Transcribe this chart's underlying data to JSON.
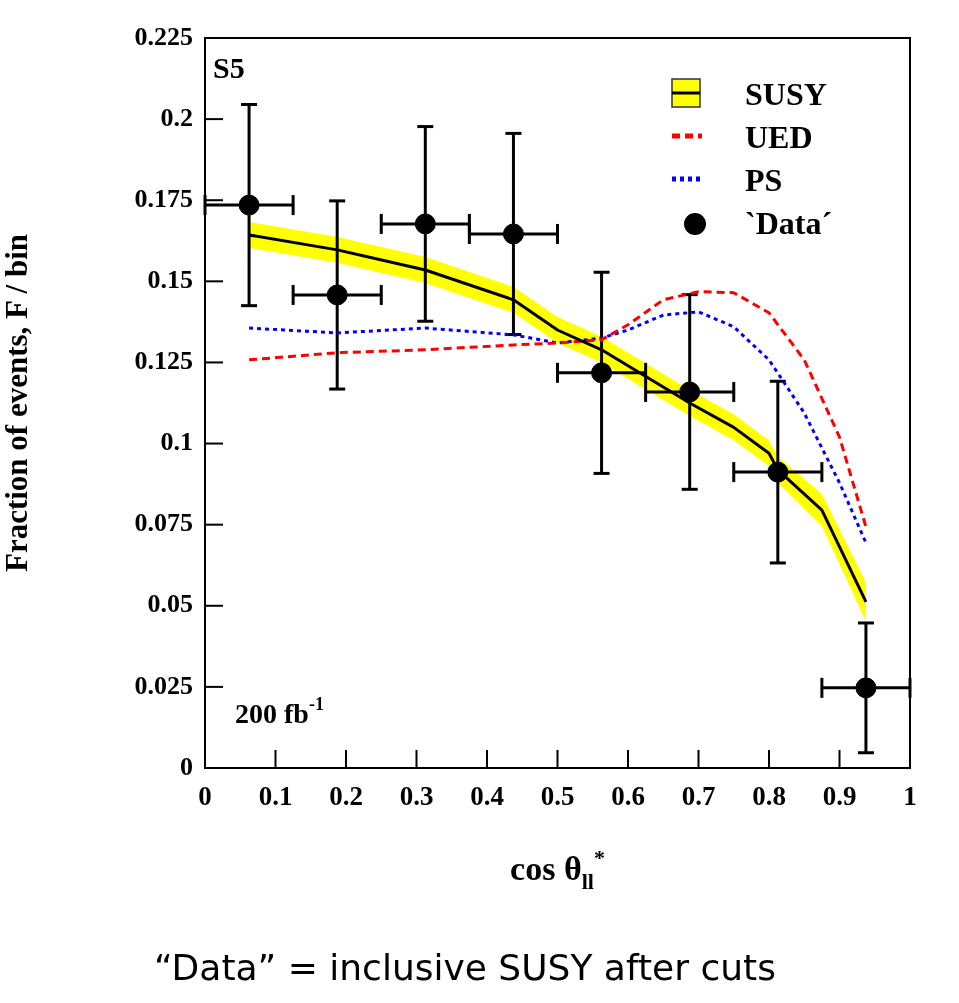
{
  "chart_data": {
    "type": "line",
    "ylabel": "Fraction of events, F / bin",
    "xlabel": "cos θ$_{ll}$$^{*}$",
    "xlim": [
      0,
      1
    ],
    "xticks": [
      0,
      0.1,
      0.2,
      0.3,
      0.4,
      0.5,
      0.6,
      0.7,
      0.8,
      0.9,
      1
    ],
    "ylim": [
      0,
      0.225
    ],
    "yticks": [
      0,
      0.025,
      0.05,
      0.075,
      0.1,
      0.125,
      0.15,
      0.175,
      0.2,
      0.225
    ],
    "grid": false,
    "legend": "top right",
    "annotations": [
      "S5",
      "200 fb$^{-1}$",
      "“Data” = inclusive SUSY after cuts"
    ],
    "series": [
      {
        "name": "SUSY",
        "color": "#000000",
        "line_style": "solid",
        "marker": "none",
        "x": [
          0.0625,
          0.1875,
          0.3125,
          0.4375,
          0.5,
          0.5625,
          0.6875,
          0.75,
          0.8,
          0.8125,
          0.875,
          0.9375
        ],
        "values": [
          0.1643,
          0.1597,
          0.1535,
          0.1443,
          0.135,
          0.1289,
          0.1125,
          0.105,
          0.097,
          0.0919,
          0.0795,
          0.0512
        ],
        "lower": [
          0.1603,
          0.1557,
          0.1495,
          0.1403,
          0.131,
          0.1249,
          0.1085,
          0.101,
          0.093,
          0.0879,
          0.0745,
          0.0452
        ],
        "upper": [
          0.1683,
          0.1637,
          0.1575,
          0.1483,
          0.139,
          0.1329,
          0.1165,
          0.109,
          0.101,
          0.0959,
          0.0845,
          0.0572
        ]
      },
      {
        "name": "UED",
        "color": "#ff0000",
        "line_style": "dashed",
        "marker": "none",
        "x": [
          0.0625,
          0.1875,
          0.3125,
          0.4375,
          0.5,
          0.5625,
          0.6,
          0.65,
          0.7,
          0.75,
          0.8,
          0.85,
          0.9,
          0.9375
        ],
        "values": [
          0.1258,
          0.128,
          0.1289,
          0.1304,
          0.131,
          0.132,
          0.1366,
          0.1443,
          0.1468,
          0.1465,
          0.1403,
          0.1258,
          0.102,
          0.0743
        ]
      },
      {
        "name": "PS",
        "color": "#0000ff",
        "line_style": "dotted",
        "marker": "none",
        "x": [
          0.0625,
          0.1875,
          0.3125,
          0.4375,
          0.5,
          0.5625,
          0.6,
          0.65,
          0.7,
          0.75,
          0.8,
          0.85,
          0.9,
          0.9375
        ],
        "values": [
          0.1356,
          0.1341,
          0.1356,
          0.1335,
          0.131,
          0.1325,
          0.135,
          0.1396,
          0.1406,
          0.136,
          0.1258,
          0.1094,
          0.0879,
          0.0694
        ]
      },
      {
        "name": "`Data´",
        "type": "scatter",
        "color": "#000000",
        "marker": "circle",
        "x": [
          0.0625,
          0.1875,
          0.3125,
          0.4375,
          0.5625,
          0.6875,
          0.8125,
          0.9375
        ],
        "values": [
          0.1735,
          0.1458,
          0.1677,
          0.1646,
          0.1218,
          0.1159,
          0.0912,
          0.0247
        ],
        "errors": [
          0.031,
          0.029,
          0.03,
          0.031,
          0.031,
          0.03,
          0.028,
          0.02
        ],
        "xerrors": [
          0.0625,
          0.0625,
          0.0625,
          0.0625,
          0.0625,
          0.0625,
          0.0625,
          0.0625
        ]
      }
    ]
  }
}
